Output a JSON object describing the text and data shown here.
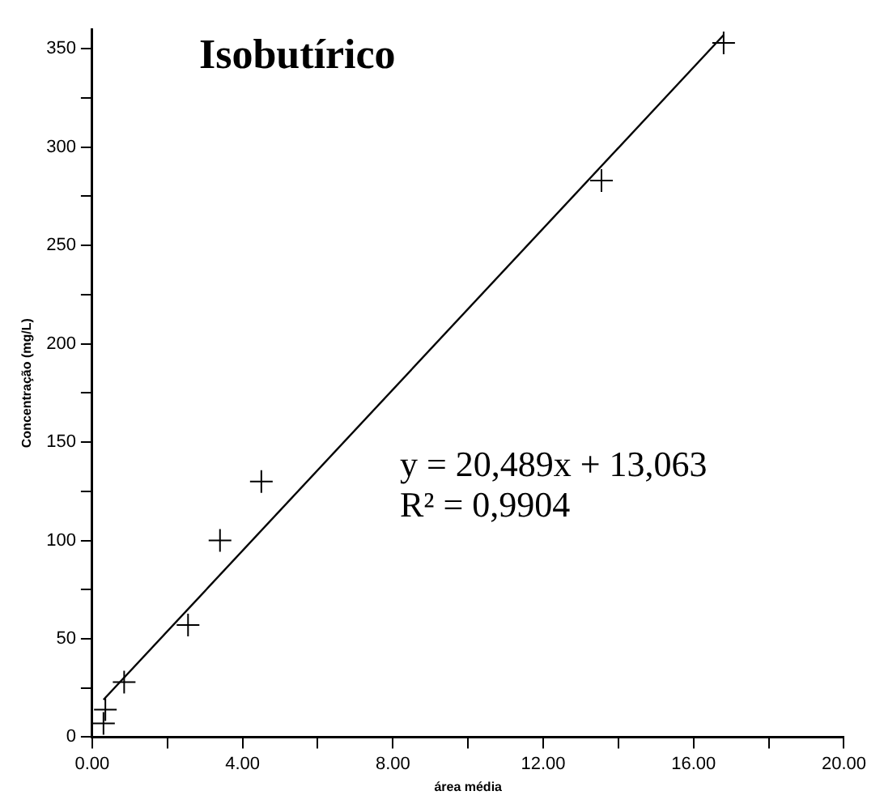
{
  "chart_data": {
    "type": "scatter",
    "title": "Isobutírico",
    "xlabel": "área média",
    "ylabel": "Concentração (mg/L)",
    "annotations": [
      "y = 20,489x + 13,063",
      "R² = 0,9904"
    ],
    "xlim": [
      0,
      20
    ],
    "xticks": [
      {
        "value": 0,
        "label": "0.00"
      },
      {
        "value": 2,
        "label": null
      },
      {
        "value": 4,
        "label": "4.00"
      },
      {
        "value": 6,
        "label": null
      },
      {
        "value": 8,
        "label": "8.00"
      },
      {
        "value": 10,
        "label": null
      },
      {
        "value": 12,
        "label": "12.00"
      },
      {
        "value": 14,
        "label": null
      },
      {
        "value": 16,
        "label": "16.00"
      },
      {
        "value": 18,
        "label": null
      },
      {
        "value": 20,
        "label": "20.00"
      }
    ],
    "ylim": [
      0,
      360
    ],
    "yticks": [
      0,
      {
        "value": 25,
        "label": null
      },
      50,
      {
        "value": 75,
        "label": null
      },
      100,
      {
        "value": 125,
        "label": null
      },
      150,
      {
        "value": 175,
        "label": null
      },
      200,
      {
        "value": 225,
        "label": null
      },
      250,
      {
        "value": 275,
        "label": null
      },
      300,
      {
        "value": 325,
        "label": null
      },
      350
    ],
    "grid": false,
    "legend": false,
    "marker": "cross",
    "series": [
      {
        "type": "scatter",
        "color": "#000000",
        "x": [
          0.3,
          0.35,
          0.85,
          2.55,
          3.4,
          4.5,
          13.55,
          16.8
        ],
        "values": [
          7,
          14,
          28,
          57,
          100,
          130,
          283,
          353
        ]
      },
      {
        "type": "line",
        "color": "#000000",
        "line_style": "solid",
        "marker": "none",
        "x": [
          0.3,
          16.8
        ],
        "values": [
          19,
          357
        ]
      }
    ]
  }
}
